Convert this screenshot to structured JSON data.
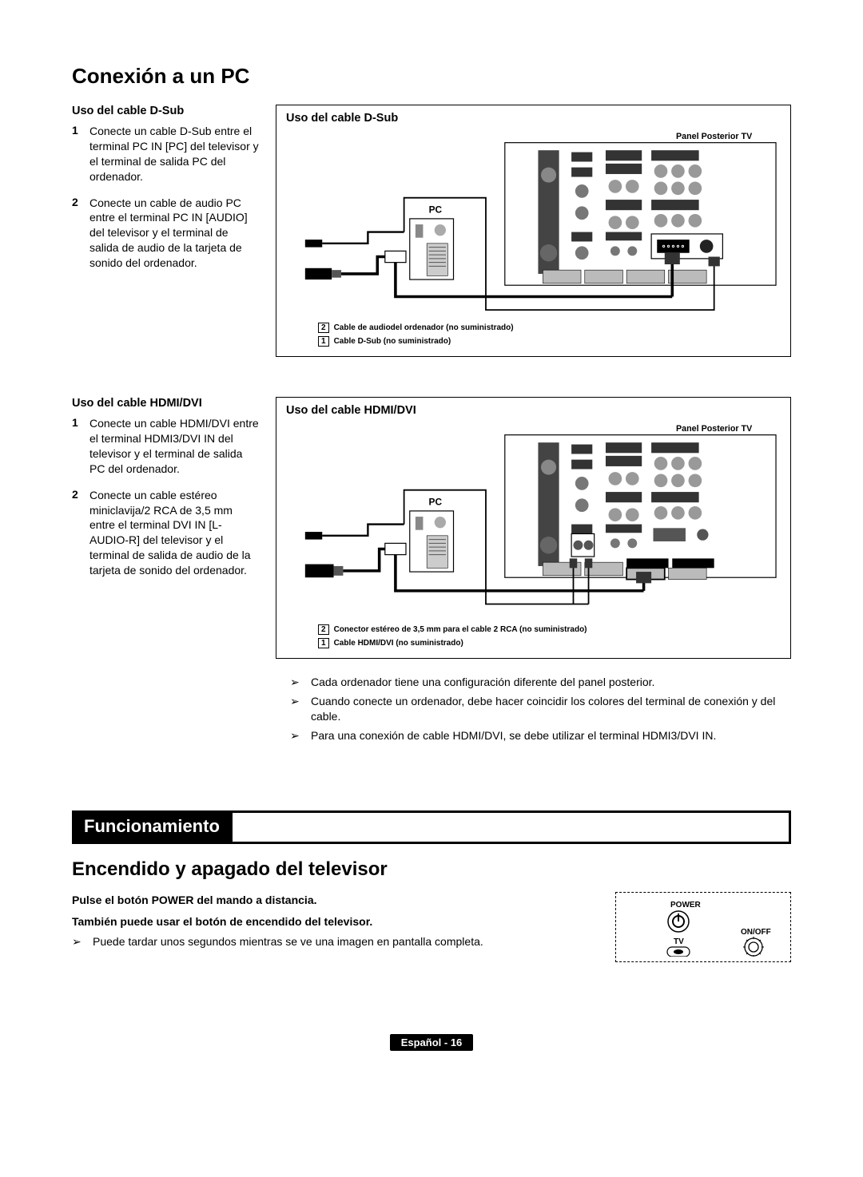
{
  "title": "Conexión a un PC",
  "dsub": {
    "heading": "Uso del cable D-Sub",
    "steps": [
      "Conecte un cable D-Sub entre el terminal PC IN [PC] del televisor y el terminal de salida PC del ordenador.",
      "Conecte un cable de audio PC entre el terminal PC IN [AUDIO] del televisor y el terminal de salida de audio de la tarjeta de sonido del ordenador."
    ],
    "panelLabel": "Panel Posterior TV",
    "pcLabel": "PC",
    "callouts": [
      {
        "n": "2",
        "text": "Cable de audiodel ordenador (no suministrado)"
      },
      {
        "n": "1",
        "text": "Cable D-Sub (no suministrado)"
      }
    ]
  },
  "hdmi": {
    "heading": "Uso del cable HDMI/DVI",
    "steps": [
      "Conecte un cable HDMI/DVI entre el terminal HDMI3/DVI IN del televisor y el terminal de salida PC del ordenador.",
      "Conecte un cable estéreo miniclavija/2 RCA de 3,5 mm entre el terminal DVI IN [L-AUDIO-R] del televisor y el terminal de salida de audio de la tarjeta de sonido del ordenador."
    ],
    "panelLabel": "Panel Posterior TV",
    "pcLabel": "PC",
    "callouts": [
      {
        "n": "2",
        "text": "Conector estéreo de 3,5 mm para el cable 2 RCA (no suministrado)"
      },
      {
        "n": "1",
        "text": "Cable HDMI/DVI (no suministrado)"
      }
    ]
  },
  "notes": [
    "Cada ordenador tiene una configuración diferente del panel posterior.",
    "Cuando conecte un ordenador, debe hacer coincidir los colores del terminal de conexión y del cable.",
    "Para una conexión de cable HDMI/DVI, se debe utilizar el terminal HDMI3/DVI IN."
  ],
  "funcSection": "Funcionamiento",
  "powerHeading": "Encendido y apagado del televisor",
  "powerBold1": "Pulse el botón POWER del mando a distancia.",
  "powerBold2": "También puede usar el botón de encendido del televisor.",
  "powerNote": "Puede tardar unos segundos mientras se ve una imagen en pantalla completa.",
  "remote": {
    "power": "POWER",
    "tv": "TV",
    "onoff": "ON/OFF"
  },
  "footer": "Español - 16",
  "noteArrow": "➢"
}
